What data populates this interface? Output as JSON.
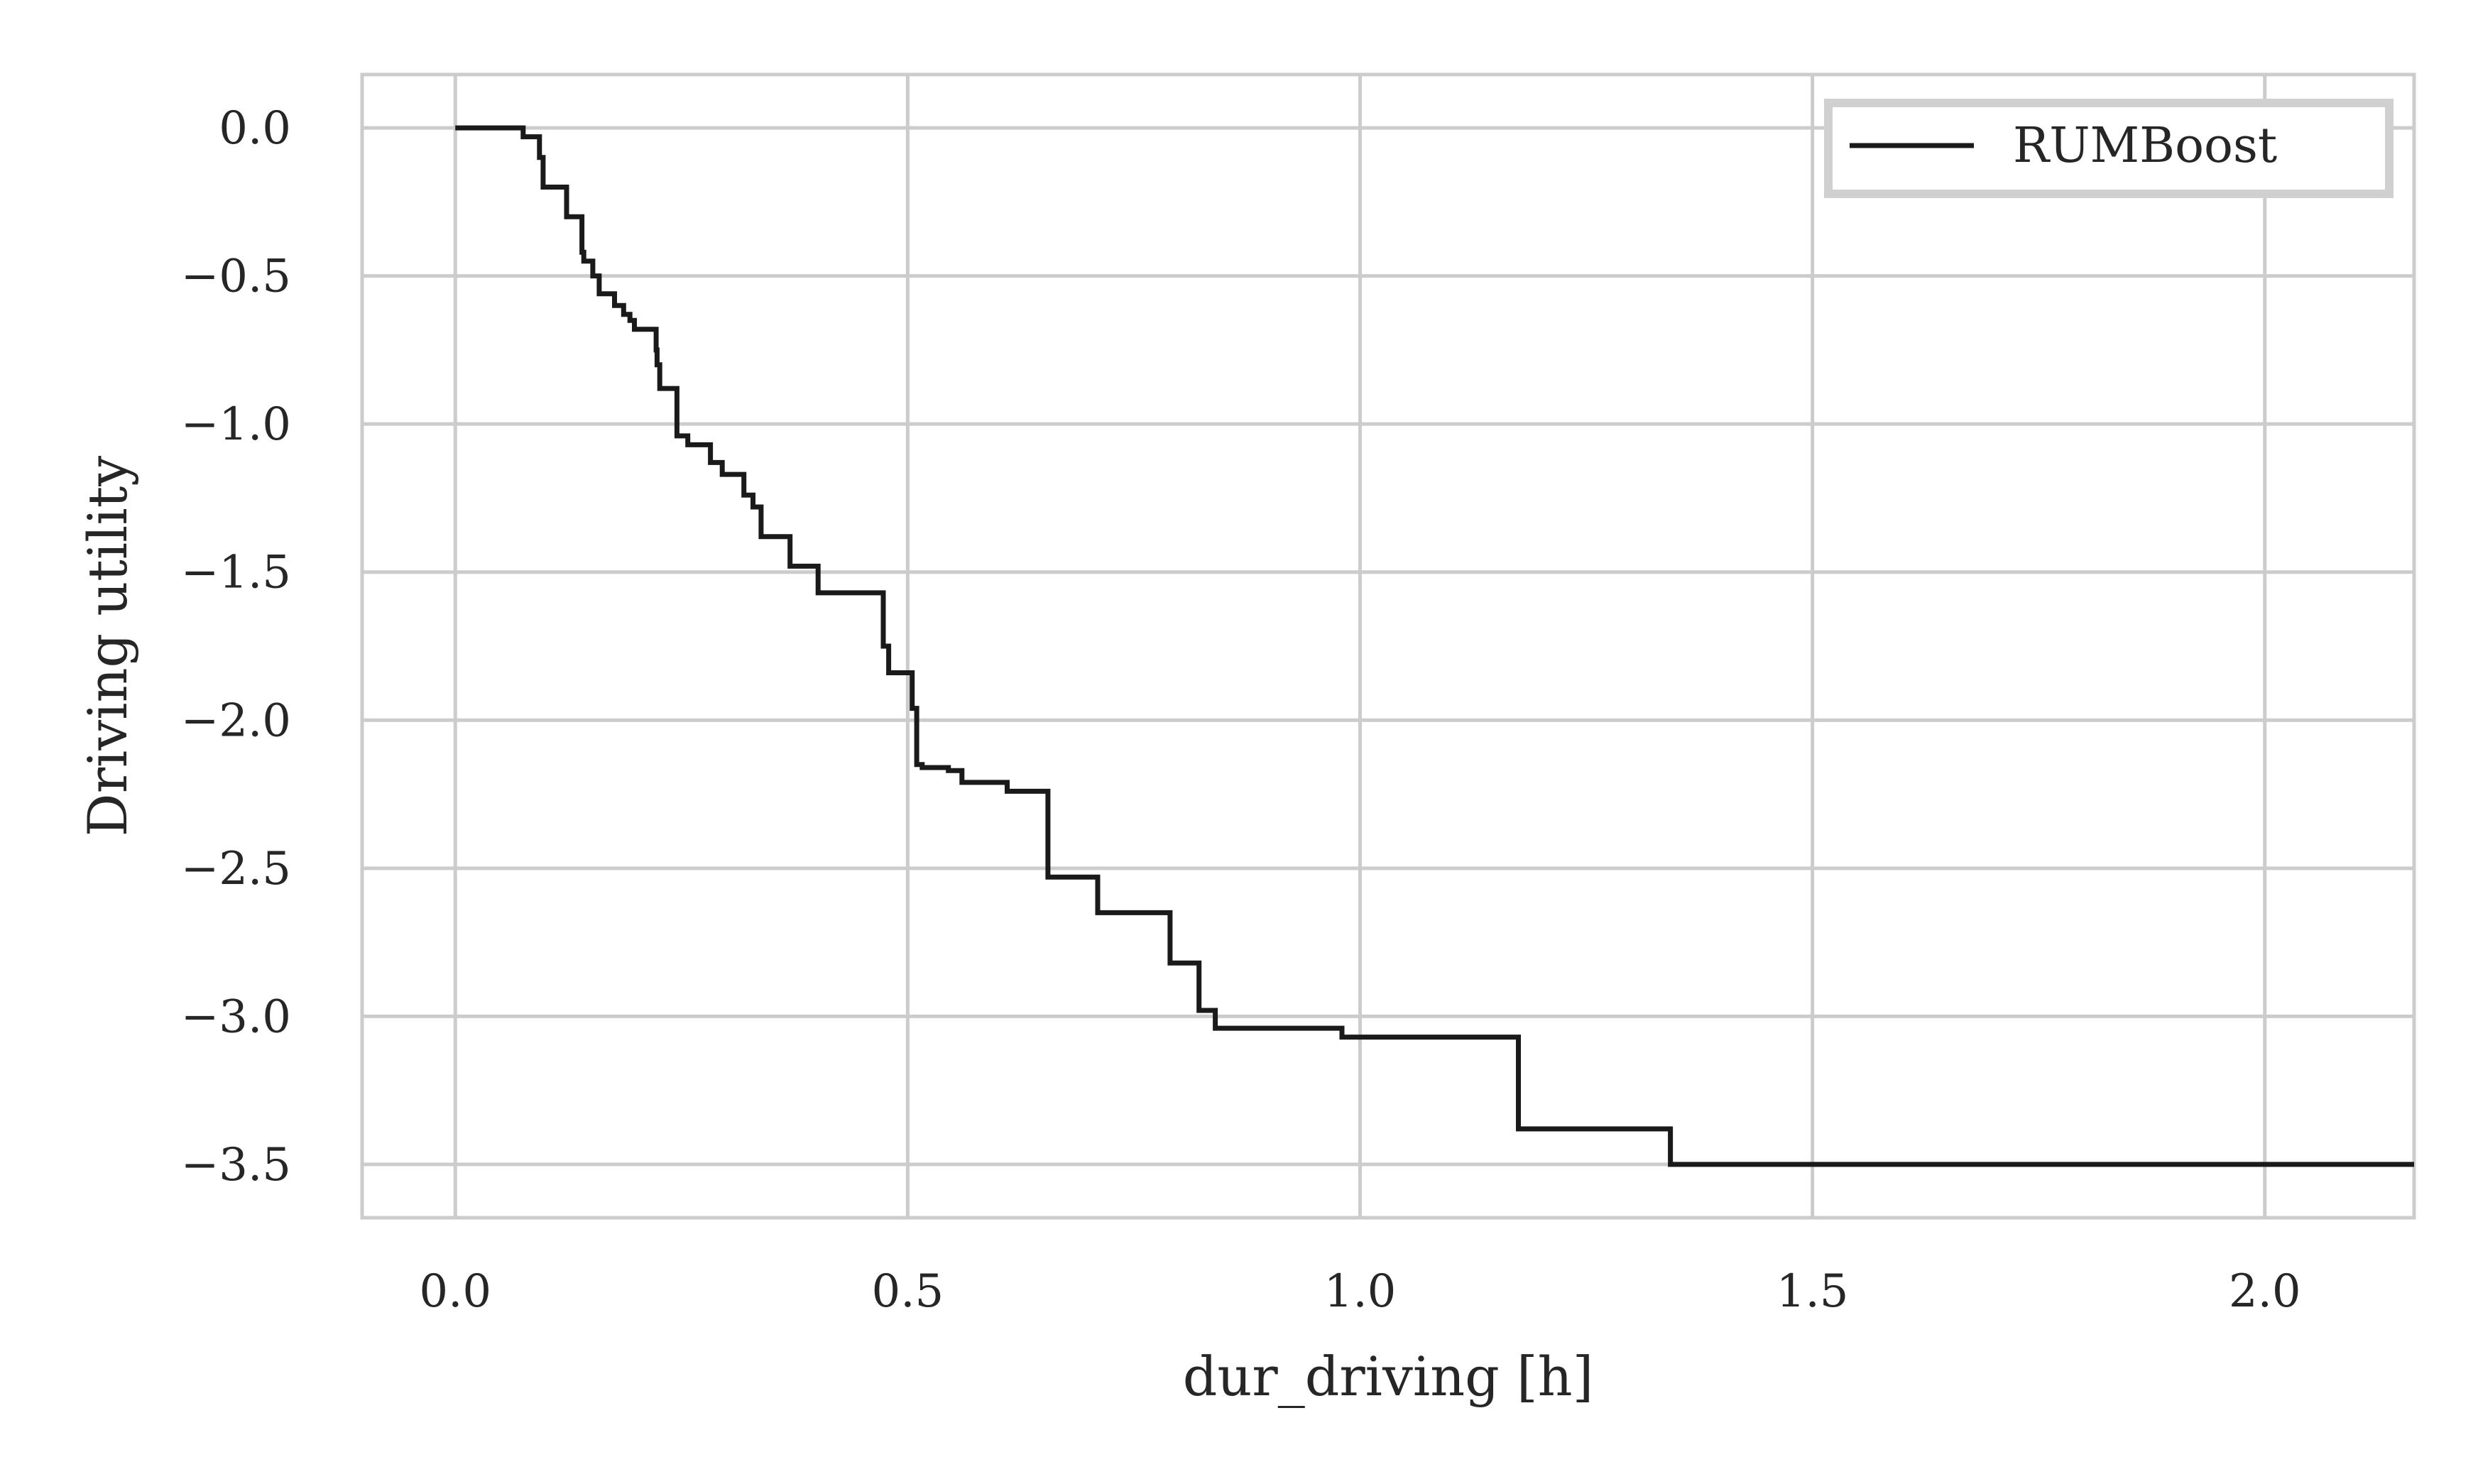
{
  "chart_data": {
    "type": "line",
    "xlabel": "dur_driving [h]",
    "ylabel": "Driving utility",
    "xlim": [
      -0.103,
      2.165
    ],
    "ylim": [
      -3.68,
      0.18
    ],
    "x_ticks": [
      0.0,
      0.5,
      1.0,
      1.5,
      2.0
    ],
    "x_tick_labels": [
      "0.0",
      "0.5",
      "1.0",
      "1.5",
      "2.0"
    ],
    "y_ticks": [
      0.0,
      -0.5,
      -1.0,
      -1.5,
      -2.0,
      -2.5,
      -3.0,
      -3.5
    ],
    "y_tick_labels": [
      "0.0",
      "−0.5",
      "−1.0",
      "−1.5",
      "−2.0",
      "−2.5",
      "−3.0",
      "−3.5"
    ],
    "grid": true,
    "legend_position": "top-right",
    "step": true,
    "series": [
      {
        "name": "RUMBoost",
        "color": "#1a1a1a",
        "x": [
          0.0,
          0.075,
          0.093,
          0.097,
          0.123,
          0.14,
          0.142,
          0.152,
          0.159,
          0.176,
          0.186,
          0.193,
          0.198,
          0.206,
          0.222,
          0.223,
          0.226,
          0.245,
          0.257,
          0.282,
          0.295,
          0.306,
          0.319,
          0.329,
          0.338,
          0.37,
          0.401,
          0.473,
          0.479,
          0.505,
          0.51,
          0.516,
          0.545,
          0.56,
          0.61,
          0.655,
          0.71,
          0.79,
          0.822,
          0.84,
          0.98,
          1.175,
          1.343,
          2.165
        ],
        "y": [
          0.0,
          -0.03,
          -0.1,
          -0.2,
          -0.3,
          -0.42,
          -0.45,
          -0.5,
          -0.56,
          -0.6,
          -0.63,
          -0.65,
          -0.68,
          -0.68,
          -0.75,
          -0.8,
          -0.88,
          -1.04,
          -1.07,
          -1.13,
          -1.17,
          -1.17,
          -1.24,
          -1.28,
          -1.38,
          -1.48,
          -1.57,
          -1.75,
          -1.84,
          -1.96,
          -2.15,
          -2.16,
          -2.17,
          -2.21,
          -2.24,
          -2.53,
          -2.65,
          -2.82,
          -2.98,
          -3.04,
          -3.07,
          -3.38,
          -3.5,
          -3.5
        ]
      }
    ]
  }
}
